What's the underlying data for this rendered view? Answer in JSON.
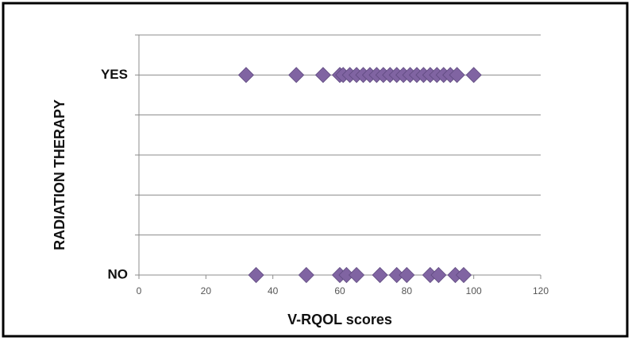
{
  "chart_data": {
    "type": "scatter",
    "xlabel": "V-RQOL scores",
    "ylabel": "RADIATION THERAPY",
    "x": [
      32,
      47,
      55,
      60,
      61,
      63,
      65,
      67,
      69,
      71,
      73,
      75,
      77,
      79,
      81,
      83,
      85,
      87,
      89,
      91,
      93,
      95,
      100,
      35,
      50,
      60,
      62,
      65,
      72,
      77,
      80,
      87,
      89.5,
      94.5,
      97
    ],
    "values": [
      1,
      1,
      1,
      1,
      1,
      1,
      1,
      1,
      1,
      1,
      1,
      1,
      1,
      1,
      1,
      1,
      1,
      1,
      1,
      1,
      1,
      1,
      1,
      0,
      0,
      0,
      0,
      0,
      0,
      0,
      0,
      0,
      0,
      0,
      0
    ],
    "color": "#8064a2",
    "xlim": [
      0,
      120
    ],
    "xticks": [
      0,
      20,
      40,
      60,
      80,
      100,
      120
    ],
    "ylim": [
      0,
      1.2
    ],
    "yticks": [
      {
        "value": 0,
        "label": "NO"
      },
      {
        "value": 0.2,
        "label": null
      },
      {
        "value": 0.4,
        "label": null
      },
      {
        "value": 0.6,
        "label": null
      },
      {
        "value": 0.8,
        "label": null
      },
      {
        "value": 1,
        "label": "YES"
      },
      {
        "value": 1.2,
        "label": null
      }
    ],
    "grid": true
  }
}
